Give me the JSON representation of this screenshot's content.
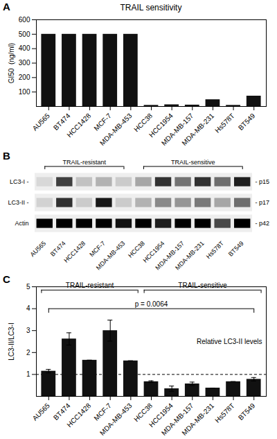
{
  "chart_data": [
    {
      "type": "bar",
      "panel_label": "A",
      "title": "TRAIL sensitivity",
      "ylabel": "GI50  (ng/ml)",
      "categories": [
        "AU565",
        "BT474",
        "HCC1428",
        "MCF-7",
        "MDA-MB-453",
        "HCC38",
        "HCC1954",
        "MDA-MB-157",
        "MDA-MB-231",
        "Hs578T",
        "BT549"
      ],
      "values": [
        500,
        500,
        500,
        500,
        500,
        8,
        12,
        10,
        47,
        8,
        72
      ],
      "color": "#111111",
      "ylim": [
        0,
        600
      ],
      "yticks": [
        100,
        200,
        300,
        400,
        500,
        600
      ]
    },
    {
      "type": "heatmap",
      "panel_label": "B",
      "categories": [
        "AU565",
        "BT474",
        "HCC1428",
        "MCF-7",
        "MDA-MB-453",
        "HCC38",
        "HCC1954",
        "MDA-MB-157",
        "MDA-MB-231",
        "Hs578T",
        "BT549"
      ],
      "rows": [
        "LC3-I -",
        "LC3-II -",
        "Actin"
      ],
      "cells": [
        [
          0.12,
          0.68,
          0.22,
          0.28,
          0.18,
          0.32,
          0.72,
          0.5,
          0.72,
          0.52,
          0.78
        ],
        [
          0.15,
          0.72,
          0.18,
          0.8,
          0.18,
          0.28,
          0.42,
          0.38,
          0.48,
          0.32,
          0.52
        ],
        [
          0.88,
          0.88,
          0.88,
          0.88,
          0.82,
          0.88,
          0.78,
          0.88,
          0.88,
          0.65,
          0.88
        ]
      ],
      "annotations": [
        "- p15",
        "- p17",
        "- p42"
      ],
      "groups": [
        {
          "label": "TRAIL-resistant",
          "from": "AU565",
          "to": "MDA-MB-453"
        },
        {
          "label": "TRAIL-sensitive",
          "from": "HCC38",
          "to": "BT549"
        }
      ]
    },
    {
      "type": "bar",
      "panel_label": "C",
      "ylabel": "LC3-II/LC3-I",
      "categories": [
        "AU565",
        "BT474",
        "HCC1428",
        "MCF-7",
        "MDA-MB-453",
        "HCC38",
        "HCC1954",
        "MDA-MB-157",
        "MDA-MB-231",
        "Hs578T",
        "BT549"
      ],
      "values": [
        1.15,
        2.62,
        1.65,
        3.0,
        1.62,
        0.67,
        0.35,
        0.57,
        0.38,
        0.67,
        0.78
      ],
      "errors": [
        0.08,
        0.28,
        0.0,
        0.48,
        0.0,
        0.04,
        0.12,
        0.08,
        0.0,
        0.0,
        0.08
      ],
      "color": "#111111",
      "ylim": [
        0,
        5
      ],
      "yticks": [
        1,
        2,
        3,
        4,
        5
      ],
      "reference_line": 1,
      "annotations": [
        "Relative LC3-II levels"
      ],
      "pvalue": {
        "label": "p = 0.0064",
        "from": "AU565",
        "to": "BT549"
      },
      "groups": [
        {
          "label": "TRAIL-resistant",
          "from": "AU565",
          "to": "MDA-MB-453"
        },
        {
          "label": "TRAIL-sensitive",
          "from": "HCC38",
          "to": "BT549"
        }
      ]
    }
  ]
}
